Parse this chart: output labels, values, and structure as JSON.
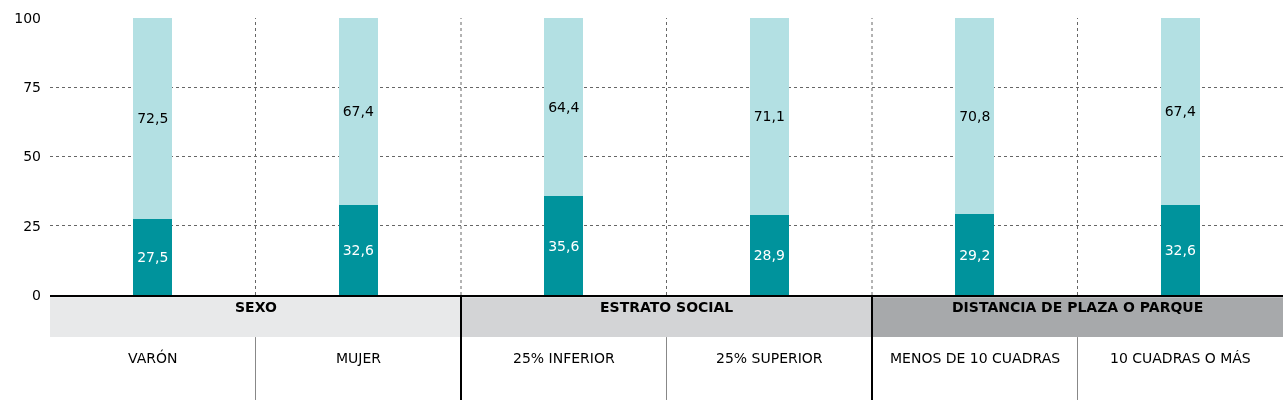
{
  "chart_data": {
    "type": "bar",
    "stacked": true,
    "categories": [
      "VARÓN",
      "MUJER",
      "25% INFERIOR",
      "25% SUPERIOR",
      "MENOS DE 10 CUADRAS",
      "10 CUADRAS O MÁS"
    ],
    "series": [
      {
        "color": "#00939c",
        "values": [
          27.5,
          32.6,
          35.6,
          28.9,
          29.2,
          32.6
        ],
        "value_labels": [
          "27,5",
          "32,6",
          "35,6",
          "28,9",
          "29,2",
          "32,6"
        ]
      },
      {
        "color": "#b3e0e3",
        "values": [
          72.5,
          67.4,
          64.4,
          71.1,
          70.8,
          67.4
        ],
        "value_labels": [
          "72,5",
          "67,4",
          "64,4",
          "71,1",
          "70,8",
          "67,4"
        ]
      }
    ],
    "annotations": [
      "SEXO",
      "ESTRATO SOCIAL",
      "DISTANCIA DE PLAZA O PARQUE"
    ],
    "ylim": [
      0,
      100
    ],
    "yticks": [
      0,
      25,
      50,
      75,
      100
    ],
    "grid": true
  }
}
